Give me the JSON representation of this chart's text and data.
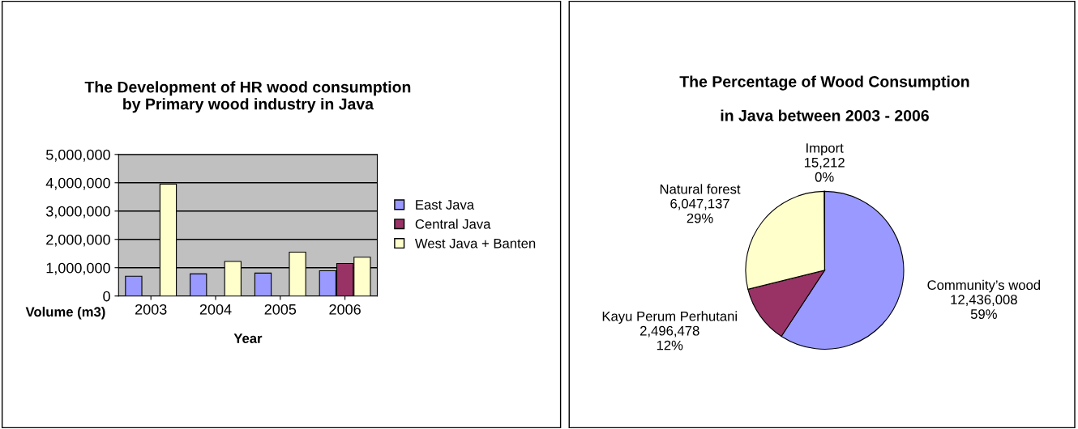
{
  "chart_data": [
    {
      "type": "bar",
      "title": "The Development of HR wood consumption\nby Primary wood industry in Java",
      "xlabel": "Year",
      "ylabel": "Volume (m3)",
      "categories": [
        "2003",
        "2004",
        "2005",
        "2006"
      ],
      "series": [
        {
          "name": "East Java",
          "color": "#9999ff",
          "values": [
            700000,
            780000,
            810000,
            890000
          ]
        },
        {
          "name": "Central Java",
          "color": "#993366",
          "values": [
            null,
            null,
            null,
            1150000
          ]
        },
        {
          "name": "West Java + Banten",
          "color": "#ffffcc",
          "values": [
            3950000,
            1220000,
            1550000,
            1370000
          ]
        }
      ],
      "ylim": [
        0,
        5000000
      ],
      "yticks": [
        {
          "value": 0,
          "label": "0"
        },
        {
          "value": 1000000,
          "label": "1,000,000"
        },
        {
          "value": 2000000,
          "label": "2,000,000"
        },
        {
          "value": 3000000,
          "label": "3,000,000"
        },
        {
          "value": 4000000,
          "label": "4,000,000"
        },
        {
          "value": 5000000,
          "label": "5,000,000"
        }
      ],
      "grid": "y",
      "legend": "right"
    },
    {
      "type": "pie",
      "title": "The Percentage of Wood Consumption\n\nin Java between 2003 - 2006",
      "categories": [
        "Community’s wood",
        "Kayu Perum Perhutani",
        "Natural forest",
        "Import"
      ],
      "values": [
        12436008,
        2496478,
        6047137,
        15212
      ],
      "colors": [
        "#9999ff",
        "#993366",
        "#ffffcc",
        "#ccffff"
      ],
      "value_labels": [
        "12,436,008\n59%",
        "2,496,478\n12%",
        "6,047,137\n29%",
        "15,212\n0%"
      ]
    }
  ]
}
